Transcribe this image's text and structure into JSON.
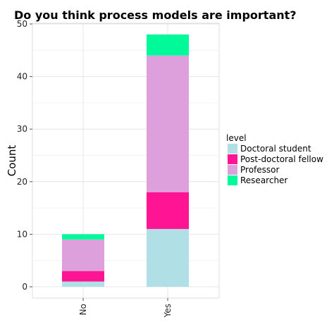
{
  "chart_data": {
    "type": "bar",
    "stacked": true,
    "title": "Do you think process models are important?",
    "xlabel": "",
    "ylabel": "Count",
    "categories": [
      "No",
      "Yes"
    ],
    "ylim": [
      0,
      50
    ],
    "yticks": [
      0,
      10,
      20,
      30,
      40,
      50
    ],
    "grid": true,
    "legend_position": "right",
    "legend_title": "level",
    "series": [
      {
        "name": "Doctoral student",
        "values": [
          1,
          11
        ],
        "color": "#b0dfe5"
      },
      {
        "name": "Post-doctoral fellow",
        "values": [
          2,
          7
        ],
        "color": "#ff1493"
      },
      {
        "name": "Professor",
        "values": [
          6,
          26
        ],
        "color": "#dda0dd"
      },
      {
        "name": "Researcher",
        "values": [
          1,
          4
        ],
        "color": "#00fa9a"
      }
    ]
  }
}
